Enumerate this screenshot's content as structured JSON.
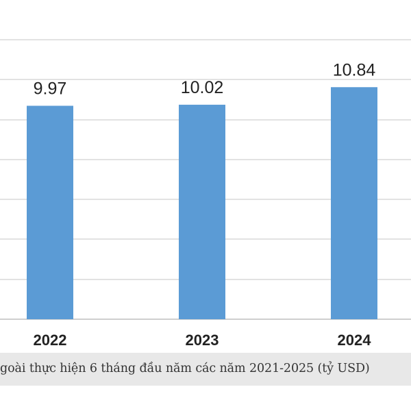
{
  "caption": "goài thực hiện 6 tháng đầu năm các năm 2021-2025 (tỷ USD)",
  "chart_data": {
    "type": "bar",
    "categories": [
      "2022",
      "2023",
      "2024"
    ],
    "values": [
      9.97,
      10.02,
      10.84
    ],
    "value_labels": [
      "9.97",
      "10.02",
      "10.84"
    ],
    "bar_color": "#5b9bd5",
    "grid": true,
    "legend": "none"
  }
}
